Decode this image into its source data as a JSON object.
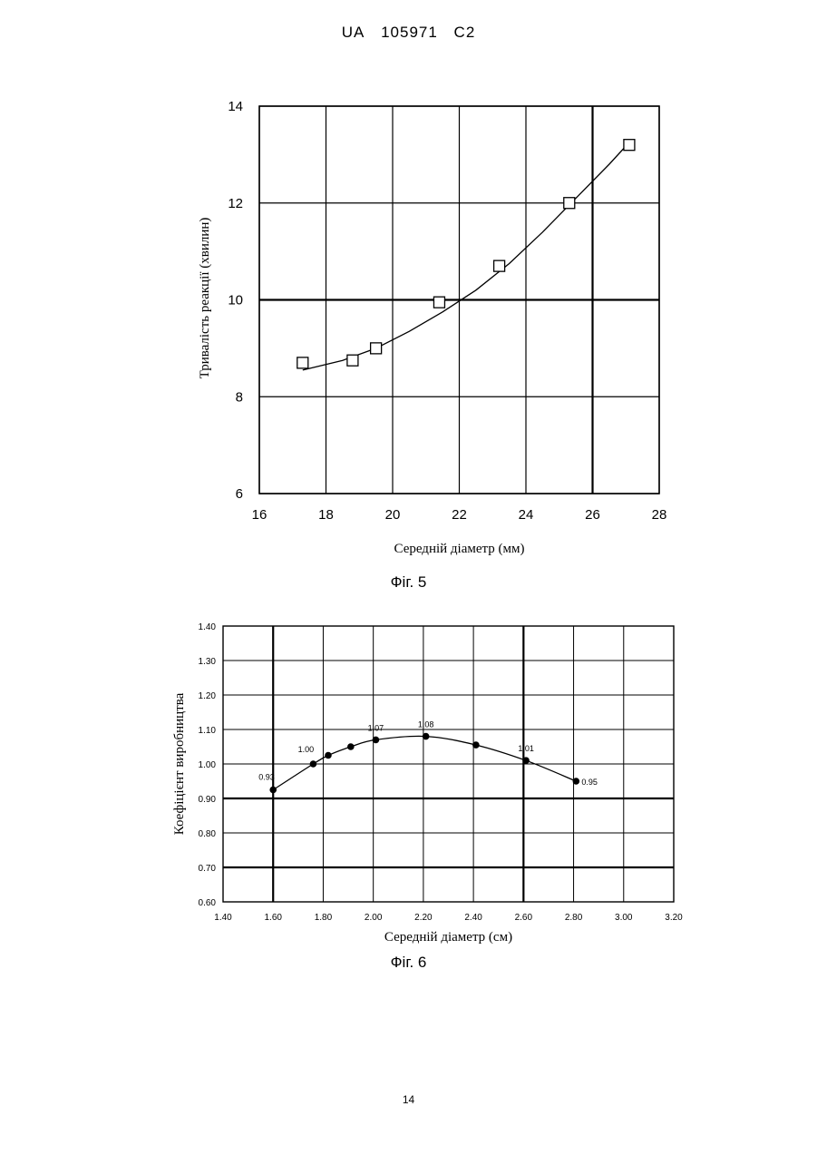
{
  "header": {
    "country": "UA",
    "number": "105971",
    "kind": "C2"
  },
  "page_number": "14",
  "chart_data": [
    {
      "type": "scatter",
      "caption": "Фіг. 5",
      "xlabel": "Середній діаметр (мм)",
      "ylabel": "Тривалість реакції (хвилин)",
      "xlim": [
        16,
        28
      ],
      "ylim": [
        6,
        14
      ],
      "x_ticks": [
        "16",
        "18",
        "20",
        "22",
        "24",
        "26",
        "28"
      ],
      "y_ticks": [
        "6",
        "8",
        "10",
        "12",
        "14"
      ],
      "grid": true,
      "marker": "square",
      "points": {
        "x": [
          17.3,
          18.8,
          19.5,
          21.4,
          23.2,
          25.3,
          27.1
        ],
        "y": [
          8.7,
          8.75,
          9.0,
          9.95,
          10.7,
          12.0,
          13.2
        ]
      },
      "fit_line": {
        "x": [
          17.3,
          18.5,
          19.5,
          20.5,
          21.5,
          22.5,
          23.5,
          24.5,
          25.5,
          26.5,
          27.1
        ],
        "y": [
          8.55,
          8.75,
          9.0,
          9.35,
          9.75,
          10.2,
          10.75,
          11.4,
          12.1,
          12.8,
          13.25
        ]
      }
    },
    {
      "type": "line",
      "caption": "Фіг. 6",
      "xlabel": "Середній діаметр (см)",
      "ylabel": "Коефіцієнт виробництва",
      "xlim": [
        1.4,
        3.2
      ],
      "ylim": [
        0.6,
        1.4
      ],
      "x_ticks": [
        "1.40",
        "1.60",
        "1.80",
        "2.00",
        "2.20",
        "2.40",
        "2.60",
        "2.80",
        "3.00",
        "3.20"
      ],
      "y_ticks": [
        "0.60",
        "0.70",
        "0.80",
        "0.90",
        "1.00",
        "1.10",
        "1.20",
        "1.30",
        "1.40"
      ],
      "grid": true,
      "marker": "circle",
      "points": {
        "x": [
          1.6,
          1.76,
          1.82,
          1.91,
          2.01,
          2.21,
          2.41,
          2.61,
          2.81
        ],
        "y": [
          0.925,
          1.0,
          1.025,
          1.05,
          1.07,
          1.08,
          1.055,
          1.01,
          0.95
        ]
      },
      "data_labels": [
        {
          "text": "0.93",
          "x": 1.6,
          "y": 0.925
        },
        {
          "text": "1.00",
          "x": 1.76,
          "y": 1.0
        },
        {
          "text": "1.07",
          "x": 2.01,
          "y": 1.07
        },
        {
          "text": "1.08",
          "x": 2.21,
          "y": 1.08
        },
        {
          "text": "1.01",
          "x": 2.61,
          "y": 1.01
        },
        {
          "text": "0.95",
          "x": 2.81,
          "y": 0.95
        }
      ]
    }
  ]
}
